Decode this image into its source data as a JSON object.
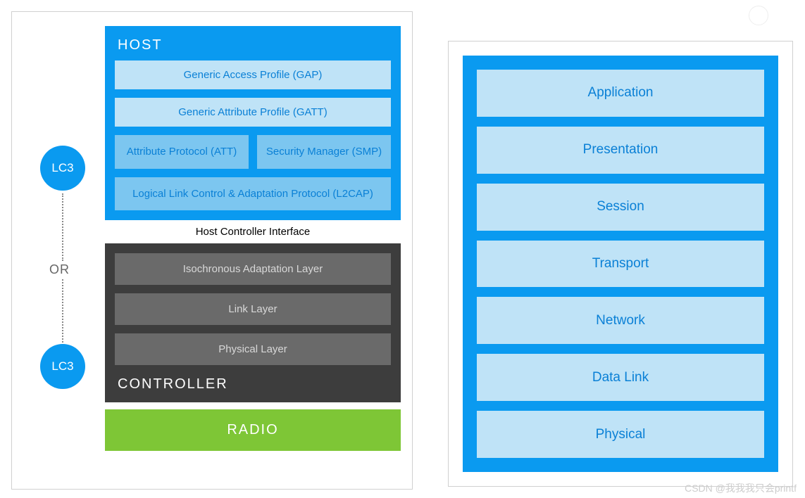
{
  "diagram": {
    "type": "layered-stack",
    "colors": {
      "blue_bg": "#0a9af0",
      "blue_layer_light": "#bfe3f7",
      "blue_layer_mid": "#7cc6f0",
      "blue_text": "#0a80d6",
      "dark_bg": "#3d3d3d",
      "dark_layer": "#6a6a6a",
      "dark_text": "#d8d8d8",
      "radio_green": "#7ec636",
      "white": "#ffffff",
      "border_gray": "#d0d0d0",
      "dotted_gray": "#888888",
      "or_gray": "#666666"
    },
    "fonts": {
      "title_size": 20,
      "layer_size": 15,
      "osi_size": 19,
      "lc3_size": 17
    }
  },
  "left": {
    "lc3_label": "LC3",
    "or_label": "OR",
    "host": {
      "title": "HOST",
      "layers": {
        "gap": "Generic Access Profile (GAP)",
        "gatt": "Generic Attribute Profile (GATT)",
        "att": "Attribute Protocol (ATT)",
        "smp": "Security Manager (SMP)",
        "l2cap": "Logical Link Control & Adaptation Protocol (L2CAP)"
      }
    },
    "hci": "Host Controller Interface",
    "controller": {
      "title": "CONTROLLER",
      "layers": {
        "ial": "Isochronous Adaptation Layer",
        "ll": "Link Layer",
        "phy": "Physical Layer"
      }
    },
    "radio": "RADIO"
  },
  "right": {
    "osi": {
      "application": "Application",
      "presentation": "Presentation",
      "session": "Session",
      "transport": "Transport",
      "network": "Network",
      "datalink": "Data Link",
      "physical": "Physical"
    }
  },
  "watermark": "CSDN @我我我只会printf"
}
